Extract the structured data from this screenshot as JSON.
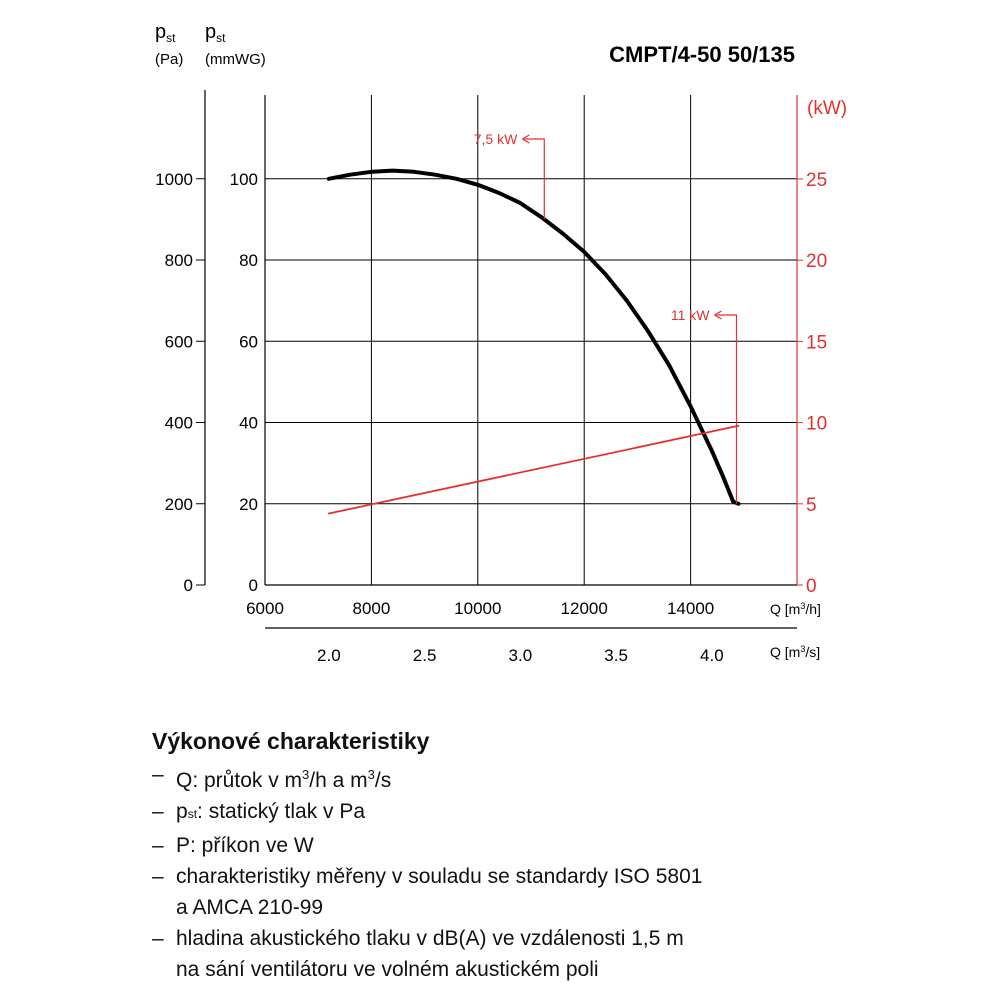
{
  "chart_data": {
    "type": "line",
    "title": "CMPT/4-50 50/135",
    "left_axis_pa": {
      "label_symbol": "p",
      "label_sub": "st",
      "label_unit": "(Pa)",
      "range": [
        0,
        1200
      ],
      "ticks": [
        "0",
        "200",
        "400",
        "600",
        "800",
        "1000"
      ]
    },
    "left_axis_mmwg": {
      "label_symbol": "p",
      "label_sub": "st",
      "label_unit": "(mmWG)",
      "range": [
        0,
        120
      ],
      "ticks": [
        "0",
        "20",
        "40",
        "60",
        "80",
        "100"
      ]
    },
    "right_axis_kw": {
      "label": "(kW)",
      "range": [
        0,
        29
      ],
      "ticks": [
        "0",
        "5",
        "10",
        "15",
        "20",
        "25"
      ],
      "color": "#e03131"
    },
    "x_axis_m3h": {
      "label_prefix": "Q [m",
      "label_sup": "3",
      "label_suffix": "/h]",
      "range": [
        6000,
        16000
      ],
      "ticks": [
        "6000",
        "8000",
        "10000",
        "12000",
        "14000"
      ]
    },
    "x_axis_m3s": {
      "label_prefix": "Q [m",
      "label_sup": "3",
      "label_suffix": "/s]",
      "ticks": [
        "2.0",
        "2.5",
        "3.0",
        "3.5",
        "4.0"
      ],
      "tick_values": [
        2.0,
        2.5,
        3.0,
        3.5,
        4.0
      ]
    },
    "grid": true,
    "series": [
      {
        "kind": "pressure",
        "unit": "mmWG",
        "color": "#000000",
        "x": [
          7200,
          7600,
          8000,
          8400,
          8800,
          9200,
          9600,
          10000,
          10400,
          10800,
          11200,
          11600,
          12000,
          12400,
          12800,
          13200,
          13600,
          14000,
          14400,
          14600,
          14800,
          14900
        ],
        "y": [
          100,
          101,
          101.7,
          102,
          101.7,
          101,
          100,
          98.5,
          96.5,
          94,
          90.5,
          86.5,
          82,
          76.5,
          70,
          62.5,
          54,
          44,
          33,
          27,
          20.5,
          20
        ]
      },
      {
        "kind": "power",
        "unit": "kW",
        "color": "#e03131",
        "x": [
          7200,
          14900
        ],
        "y": [
          4.4,
          9.8
        ]
      }
    ],
    "annotations": [
      {
        "text": "7,5 kW",
        "color": "#e03131",
        "x": 11250,
        "y_mmwg": 90
      },
      {
        "text": "11 kW",
        "color": "#e03131",
        "x": 14900,
        "y_mmwg": 20
      }
    ]
  },
  "notes": {
    "heading": "Výkonové charakteristiky",
    "items": [
      {
        "parts": [
          {
            "t": "Q: průtok v m"
          },
          {
            "t": "3",
            "sup": true
          },
          {
            "t": "/h a m"
          },
          {
            "t": "3",
            "sup": true
          },
          {
            "t": "/s"
          }
        ]
      },
      {
        "parts": [
          {
            "t": "p"
          },
          {
            "t": "st",
            "sub": true
          },
          {
            "t": ": statický tlak v Pa"
          }
        ]
      },
      {
        "parts": [
          {
            "t": "P: příkon ve W"
          }
        ]
      },
      {
        "parts": [
          {
            "t": "charakteristiky měřeny v souladu se standardy ISO 5801"
          },
          {
            "br": true
          },
          {
            "t": "a AMCA 210-99"
          }
        ]
      },
      {
        "parts": [
          {
            "t": "hladina akustického tlaku v dB(A) ve vzdálenosti 1,5 m"
          },
          {
            "br": true
          },
          {
            "t": "na sání ventilátoru ve volném akustickém poli"
          }
        ]
      }
    ]
  }
}
